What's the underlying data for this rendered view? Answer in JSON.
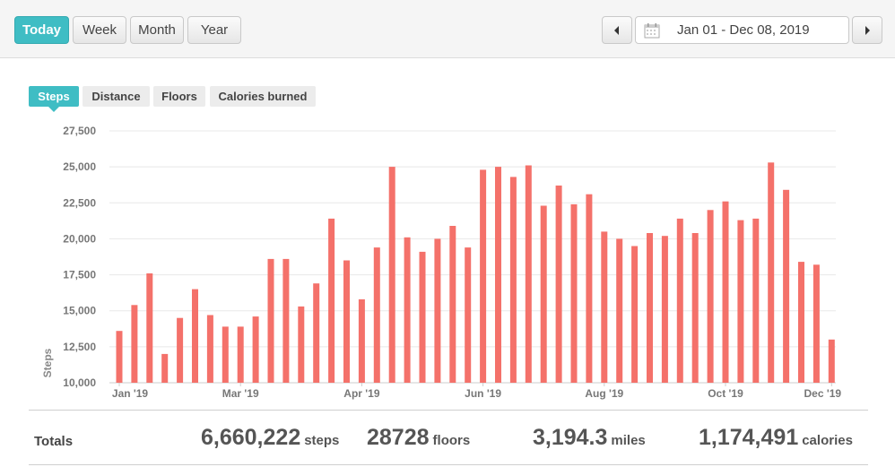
{
  "range_buttons": {
    "today": "Today",
    "week": "Week",
    "month": "Month",
    "year": "Year"
  },
  "date_range": "Jan 01 - Dec 08, 2019",
  "metric_tabs": {
    "steps": "Steps",
    "distance": "Distance",
    "floors": "Floors",
    "calories": "Calories burned"
  },
  "totals": {
    "label": "Totals",
    "steps_value": "6,660,222",
    "steps_unit": "steps",
    "floors_value": "28728",
    "floors_unit": "floors",
    "miles_value": "3,194.3",
    "miles_unit": "miles",
    "calories_value": "1,174,491",
    "calories_unit": "calories"
  },
  "colors": {
    "accent": "#3fbdc4",
    "bar": "#f4716a",
    "grid": "#e8e8e8"
  },
  "icons": {
    "prev": "chevron-left-icon",
    "next": "chevron-right-icon",
    "calendar": "calendar-icon"
  },
  "chart_data": {
    "type": "bar",
    "ylabel": "Steps",
    "ylim": [
      10000,
      27500
    ],
    "yticks": [
      "10,000",
      "12,500",
      "15,000",
      "17,500",
      "20,000",
      "22,500",
      "25,000",
      "27,500"
    ],
    "ytick_values": [
      10000,
      12500,
      15000,
      17500,
      20000,
      22500,
      25000,
      27500
    ],
    "xtick_labels": [
      "Jan '19",
      "Mar '19",
      "Apr '19",
      "Jun '19",
      "Aug '19",
      "Oct '19",
      "Dec '19"
    ],
    "xtick_week_index": [
      0,
      8,
      16,
      24,
      32,
      40,
      47
    ],
    "grid": true,
    "series": [
      {
        "values": [
          13600,
          15400,
          17600,
          12000,
          14500,
          16500,
          14700,
          13900,
          13900,
          14600,
          18600,
          18600,
          15300,
          16900,
          21400,
          18500,
          15800,
          19400,
          25000,
          20100,
          19100,
          20000,
          20900,
          19400,
          24800,
          25000,
          24300,
          25100,
          22300,
          23700,
          22400,
          23100,
          20500,
          20000,
          19500,
          20400,
          20200,
          21400,
          20400,
          22000,
          22600,
          21300,
          21400,
          25300,
          23400,
          18400,
          18200,
          13000
        ]
      }
    ]
  }
}
